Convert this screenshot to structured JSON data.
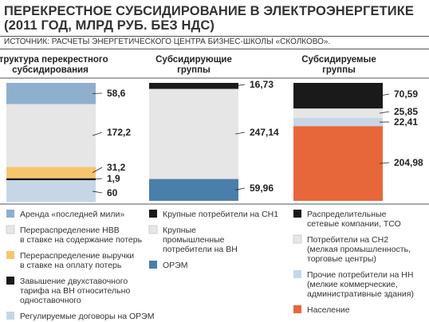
{
  "title": "ПЕРЕКРЕСТНОЕ СУБСИДИРОВАНИЕ В ЭЛЕКТРОЭНЕРГЕТИКЕ (2011 ГОД, МЛРД РУБ. БЕЗ НДС)",
  "source": "ИСТОЧНИК: РАСЧЕТЫ ЭНЕРГЕТИЧЕСКОГО ЦЕНТРА БИЗНЕС-ШКОЛЫ «СКОЛКОВО».",
  "chart_data": {
    "type": "bar",
    "stacked": true,
    "value_total_scale": 313.7,
    "columns": [
      {
        "title": [
          "Структура перекрестного",
          "субсидирования"
        ],
        "segments": [
          {
            "label": [
              "Аренда «последней мили»"
            ],
            "value": 58.6,
            "value_text": "58,6",
            "color": "#8fb0cc"
          },
          {
            "label": [
              "Перераспределение НВВ",
              "в ставке на содержание потерь"
            ],
            "value": 172.2,
            "value_text": "172,2",
            "color": "#e6e6e6"
          },
          {
            "label": [
              "Перераспределение выручки",
              "в ставке на оплату потерь"
            ],
            "value": 31.2,
            "value_text": "31,2",
            "color": "#f6c66f"
          },
          {
            "label": [
              "Завышение двухставочного",
              "тарифа на ВН относительно",
              "одноставочного"
            ],
            "value": 1.9,
            "value_text": "1,9",
            "color": "#1a1a1a"
          },
          {
            "label": [
              "Регулируемые договоры на ОРЭМ"
            ],
            "value": 60,
            "value_text": "60",
            "color": "#c6d6e6"
          }
        ]
      },
      {
        "title": [
          "Субсидирующие",
          "группы"
        ],
        "segments": [
          {
            "label": [
              "Крупные потребители на СН1"
            ],
            "value": 16.73,
            "value_text": "16,73",
            "color": "#1a1a1a"
          },
          {
            "label": [
              "Крупные",
              "промышленные",
              "потребители на ВН"
            ],
            "value": 247.14,
            "value_text": "247,14",
            "color": "#e6e6e6"
          },
          {
            "label": [
              "ОРЭМ"
            ],
            "value": 59.96,
            "value_text": "59,96",
            "color": "#4a7eab"
          }
        ]
      },
      {
        "title": [
          "Субсидируемые",
          "группы"
        ],
        "segments": [
          {
            "label": [
              "Распределительные",
              "сетевые компании, ТСО"
            ],
            "value": 70.59,
            "value_text": "70,59",
            "color": "#1a1a1a"
          },
          {
            "label": [
              "Потребители на СН2",
              "(мелкая промышленность,",
              "торговые центры)"
            ],
            "value": 25.85,
            "value_text": "25,85",
            "color": "#e6e6e6"
          },
          {
            "label": [
              "Прочие потребители на НН",
              "(мелкие коммерческие,",
              "административные здания)"
            ],
            "value": 22.41,
            "value_text": "22,41",
            "color": "#c6d6e6"
          },
          {
            "label": [
              "Население"
            ],
            "value": 204.98,
            "value_text": "204,98",
            "color": "#e8673a"
          }
        ]
      }
    ]
  }
}
